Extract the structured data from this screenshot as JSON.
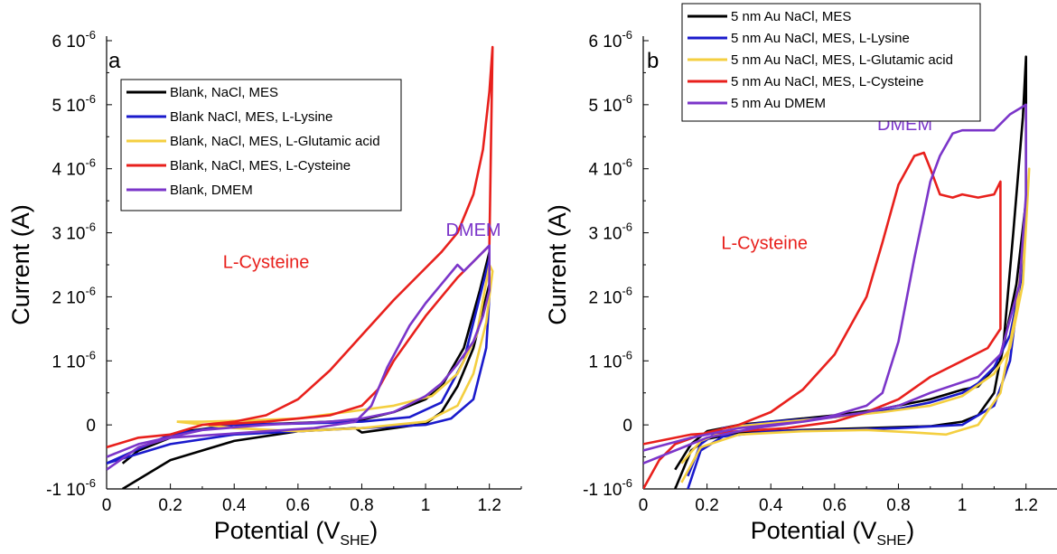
{
  "chart_data": [
    {
      "panel": "a",
      "type": "line",
      "xlabel": "Potential (V",
      "xlabel_sub": "SHE",
      "xlabel_close": ")",
      "ylabel": "Current (A)",
      "xlim": [
        0,
        1.3
      ],
      "ylim": [
        -1e-06,
        6e-06
      ],
      "x_ticks": [
        0,
        0.2,
        0.4,
        0.6,
        0.8,
        1,
        1.2
      ],
      "x_tick_labels": [
        "0",
        "0.2",
        "0.4",
        "0.6",
        "0.8",
        "1",
        "1.2"
      ],
      "y_ticks": [
        -1e-06,
        0,
        1e-06,
        2e-06,
        3e-06,
        4e-06,
        5e-06,
        6e-06
      ],
      "y_tick_labels": [
        {
          "base": "-1 10",
          "exp": "-6"
        },
        {
          "base": "0",
          "exp": ""
        },
        {
          "base": "1 10",
          "exp": "-6"
        },
        {
          "base": "2 10",
          "exp": "-6"
        },
        {
          "base": "3 10",
          "exp": "-6"
        },
        {
          "base": "4 10",
          "exp": "-6"
        },
        {
          "base": "5 10",
          "exp": "-6"
        },
        {
          "base": "6 10",
          "exp": "-6"
        }
      ],
      "legend_position": "top-left",
      "series": [
        {
          "name": "Blank, NaCl, MES",
          "color": "#000000",
          "x": [
            0.05,
            0.2,
            0.4,
            0.6,
            0.78,
            0.8,
            0.9,
            1.0,
            1.05,
            1.1,
            1.15,
            1.2,
            1.2,
            1.17,
            1.12,
            1.05,
            1.0,
            0.9,
            0.8,
            0.7,
            0.55,
            0.4,
            0.25,
            0.1,
            0.05
          ],
          "y": [
            -1e-06,
            -5.5e-07,
            -2.5e-07,
            -1e-07,
            -5e-08,
            -1.2e-07,
            -5e-08,
            2e-08,
            2e-07,
            6e-07,
            1.2e-06,
            2.2e-06,
            2.7e-06,
            2.1e-06,
            1.2e-06,
            6e-07,
            4e-07,
            2e-07,
            8e-08,
            5e-08,
            2e-08,
            0.0,
            -1e-07,
            -4e-07,
            -6e-07
          ]
        },
        {
          "name": "Blank NaCl, MES, L-Lysine",
          "color": "#1a1acc",
          "x": [
            0.0,
            0.2,
            0.4,
            0.6,
            0.8,
            1.0,
            1.08,
            1.15,
            1.19,
            1.2,
            1.2,
            1.17,
            1.12,
            1.05,
            0.95,
            0.8,
            0.6,
            0.4,
            0.2,
            0.0
          ],
          "y": [
            -6e-07,
            -3e-07,
            -1.5e-07,
            -1e-07,
            -5e-08,
            0.0,
            1e-07,
            4e-07,
            1.2e-06,
            2e-06,
            2.6e-06,
            2e-06,
            1e-06,
            3.5e-07,
            1.2e-07,
            5e-08,
            2e-08,
            0.0,
            -1.5e-07,
            -6e-07
          ]
        },
        {
          "name": "Blank, NaCl, MES, L-Glutamic acid",
          "color": "#f4cf40",
          "x": [
            0.22,
            0.4,
            0.6,
            0.8,
            1.0,
            1.1,
            1.15,
            1.19,
            1.21,
            1.2,
            1.16,
            1.1,
            1.02,
            0.9,
            0.75,
            0.6,
            0.45,
            0.3,
            0.22
          ],
          "y": [
            5e-08,
            -5e-08,
            -1e-07,
            -5e-08,
            5e-08,
            3e-07,
            8e-07,
            1.6e-06,
            2.4e-06,
            2.5e-06,
            1.4e-06,
            8e-07,
            4.5e-07,
            3e-07,
            2e-07,
            1e-07,
            7e-08,
            5e-08,
            5e-08
          ]
        },
        {
          "name": "Blank, NaCl, MES, L-Cysteine",
          "color": "#e8201c",
          "x": [
            0.0,
            0.1,
            0.2,
            0.3,
            0.4,
            0.5,
            0.6,
            0.7,
            0.8,
            0.9,
            1.0,
            1.05,
            1.1,
            1.15,
            1.18,
            1.2,
            1.21,
            1.2,
            1.15,
            1.1,
            1.05,
            1.0,
            0.95,
            0.9,
            0.85,
            0.8,
            0.7,
            0.6,
            0.5,
            0.4,
            0.32
          ],
          "y": [
            -3.5e-07,
            -2e-07,
            -1.5e-07,
            0.0,
            5e-08,
            1.5e-07,
            4e-07,
            8.5e-07,
            1.4e-06,
            1.95e-06,
            2.45e-06,
            2.7e-06,
            3e-06,
            3.6e-06,
            4.3e-06,
            5.2e-06,
            5.9e-06,
            2.8e-06,
            2.55e-06,
            2.3e-06,
            2e-06,
            1.7e-06,
            1.35e-06,
            1e-06,
            5.5e-07,
            3e-07,
            1.5e-07,
            1e-07,
            5e-08,
            2e-08,
            0.0
          ]
        },
        {
          "name": "Blank, DMEM",
          "color": "#7b35c9",
          "x": [
            0.0,
            0.1,
            0.2,
            0.35,
            0.5,
            0.65,
            0.78,
            0.83,
            0.88,
            0.95,
            1.0,
            1.05,
            1.1,
            1.12,
            1.15,
            1.2,
            1.2,
            1.18,
            1.15,
            1.1,
            1.05,
            1.0,
            0.9,
            0.8,
            0.7,
            0.5,
            0.3,
            0.1,
            0.0
          ],
          "y": [
            -7e-07,
            -3.5e-07,
            -2e-07,
            -1.5e-07,
            -1e-07,
            -5e-08,
            5e-08,
            3e-07,
            9e-07,
            1.55e-06,
            1.9e-06,
            2.2e-06,
            2.5e-06,
            2.4e-06,
            2.55e-06,
            2.8e-06,
            2.1e-06,
            1.7e-06,
            1.3e-06,
            9.5e-07,
            6.5e-07,
            4.5e-07,
            2e-07,
            1e-07,
            5e-08,
            0.0,
            -8e-08,
            -3e-07,
            -5e-07
          ]
        }
      ],
      "annotations": [
        {
          "text": "L-Cysteine",
          "color": "#e8201c",
          "x": 0.5,
          "y": 2.45e-06
        },
        {
          "text": "DMEM",
          "color": "#7b35c9",
          "x": 1.15,
          "y": 2.95e-06
        }
      ]
    },
    {
      "panel": "b",
      "type": "line",
      "xlabel": "Potential (V",
      "xlabel_sub": "SHE",
      "xlabel_close": ")",
      "ylabel": "Current (A)",
      "xlim": [
        0,
        1.3
      ],
      "ylim": [
        -1e-06,
        6e-06
      ],
      "x_ticks": [
        0,
        0.2,
        0.4,
        0.6,
        0.8,
        1,
        1.2
      ],
      "x_tick_labels": [
        "0",
        "0.2",
        "0.4",
        "0.6",
        "0.8",
        "1",
        "1.2"
      ],
      "y_ticks": [
        -1e-06,
        0,
        1e-06,
        2e-06,
        3e-06,
        4e-06,
        5e-06,
        6e-06
      ],
      "y_tick_labels": [
        {
          "base": "-1 10",
          "exp": "-6"
        },
        {
          "base": "0",
          "exp": ""
        },
        {
          "base": "1 10",
          "exp": "-6"
        },
        {
          "base": "2 10",
          "exp": "-6"
        },
        {
          "base": "3 10",
          "exp": "-6"
        },
        {
          "base": "4 10",
          "exp": "-6"
        },
        {
          "base": "5 10",
          "exp": "-6"
        },
        {
          "base": "6 10",
          "exp": "-6"
        }
      ],
      "legend_position": "top-left",
      "series": [
        {
          "name": "5 nm Au NaCl, MES",
          "color": "#000000",
          "x": [
            0.1,
            0.15,
            0.2,
            0.3,
            0.5,
            0.7,
            0.9,
            1.0,
            1.05,
            1.1,
            1.13,
            1.16,
            1.19,
            1.2,
            1.2,
            1.17,
            1.12,
            1.05,
            1.0,
            0.9,
            0.75,
            0.6,
            0.5,
            0.4,
            0.3,
            0.2,
            0.15,
            0.1
          ],
          "y": [
            -1e-06,
            -4e-07,
            -2.2e-07,
            -1.2e-07,
            -8e-08,
            -5e-08,
            -2e-08,
            5e-08,
            1.5e-07,
            5e-07,
            1.3e-06,
            3e-06,
            4.8e-06,
            5.75e-06,
            3.5e-06,
            2.2e-06,
            1e-06,
            6e-07,
            5.5e-07,
            4e-07,
            2.5e-07,
            1.5e-07,
            1e-07,
            5e-08,
            0.0,
            -1e-07,
            -3e-07,
            -7e-07
          ]
        },
        {
          "name": "5 nm Au NaCl, MES, L-Lysine",
          "color": "#1a1acc",
          "x": [
            0.14,
            0.18,
            0.25,
            0.4,
            0.6,
            0.8,
            1.0,
            1.1,
            1.15,
            1.18,
            1.2,
            1.19,
            1.15,
            1.1,
            1.05,
            1.0,
            0.9,
            0.8,
            0.6,
            0.4,
            0.25,
            0.18,
            0.14
          ],
          "y": [
            -1e-06,
            -4e-07,
            -1.8e-07,
            -1e-07,
            -8e-08,
            -5e-08,
            0.0,
            3e-07,
            1e-06,
            2.2e-06,
            3.5e-06,
            2.4e-06,
            1.4e-06,
            9e-07,
            6.5e-07,
            5e-07,
            3.5e-07,
            2.5e-07,
            1.2e-07,
            5e-08,
            -5e-08,
            -3e-07,
            -8e-07
          ]
        },
        {
          "name": "5 nm Au NaCl, MES, L-Glutamic acid",
          "color": "#f4cf40",
          "x": [
            0.12,
            0.18,
            0.3,
            0.5,
            0.7,
            0.85,
            0.95,
            1.05,
            1.12,
            1.17,
            1.2,
            1.21,
            1.19,
            1.15,
            1.1,
            1.0,
            0.9,
            0.75,
            0.6,
            0.45,
            0.3,
            0.18,
            0.12
          ],
          "y": [
            -9e-07,
            -3.5e-07,
            -1.5e-07,
            -1e-07,
            -8e-08,
            -1.2e-07,
            -1.5e-07,
            0.0,
            5e-07,
            1.8e-06,
            3.2e-06,
            4e-06,
            2.2e-06,
            1.2e-06,
            8e-07,
            4.5e-07,
            3e-07,
            2e-07,
            1.2e-07,
            5e-08,
            -2e-08,
            -2.5e-07,
            -6e-07
          ]
        },
        {
          "name": "5 nm Au NaCl, MES, L-Cysteine",
          "color": "#e8201c",
          "x": [
            0.0,
            0.05,
            0.1,
            0.2,
            0.3,
            0.4,
            0.5,
            0.6,
            0.7,
            0.75,
            0.8,
            0.85,
            0.88,
            0.9,
            0.93,
            0.97,
            1.0,
            1.05,
            1.1,
            1.12,
            1.12,
            1.08,
            1.0,
            0.9,
            0.8,
            0.7,
            0.6,
            0.45,
            0.3,
            0.15,
            0.0
          ],
          "y": [
            -1e-06,
            -5.5e-07,
            -3e-07,
            -1.2e-07,
            0.0,
            2e-07,
            5.5e-07,
            1.1e-06,
            2e-06,
            2.85e-06,
            3.75e-06,
            4.2e-06,
            4.25e-06,
            4e-06,
            3.6e-06,
            3.55e-06,
            3.6e-06,
            3.55e-06,
            3.6e-06,
            3.8e-06,
            1.5e-06,
            1.2e-06,
            1e-06,
            7.5e-07,
            4e-07,
            2e-07,
            5e-08,
            -5e-08,
            -1e-07,
            -1.5e-07,
            -3e-07
          ]
        },
        {
          "name": "5 nm Au DMEM",
          "color": "#7b35c9",
          "x": [
            0.0,
            0.1,
            0.2,
            0.35,
            0.5,
            0.6,
            0.7,
            0.75,
            0.8,
            0.85,
            0.9,
            0.93,
            0.97,
            1.0,
            1.1,
            1.15,
            1.2,
            1.2,
            1.18,
            1.12,
            1.05,
            0.9,
            0.8,
            0.7,
            0.5,
            0.3,
            0.15,
            0.0
          ],
          "y": [
            -6e-07,
            -4e-07,
            -2e-07,
            -5e-08,
            5e-08,
            1.5e-07,
            3e-07,
            5e-07,
            1.3e-06,
            2.6e-06,
            3.8e-06,
            4.2e-06,
            4.55e-06,
            4.6e-06,
            4.6e-06,
            4.85e-06,
            5e-06,
            3.6e-06,
            2.2e-06,
            1.1e-06,
            7.5e-07,
            5e-07,
            3e-07,
            2e-07,
            5e-08,
            -5e-08,
            -2e-07,
            -4e-07
          ]
        }
      ],
      "annotations": [
        {
          "text": "L-Cysteine",
          "color": "#e8201c",
          "x": 0.38,
          "y": 2.75e-06
        },
        {
          "text": "DMEM",
          "color": "#7b35c9",
          "x": 0.82,
          "y": 4.6e-06
        }
      ]
    }
  ]
}
